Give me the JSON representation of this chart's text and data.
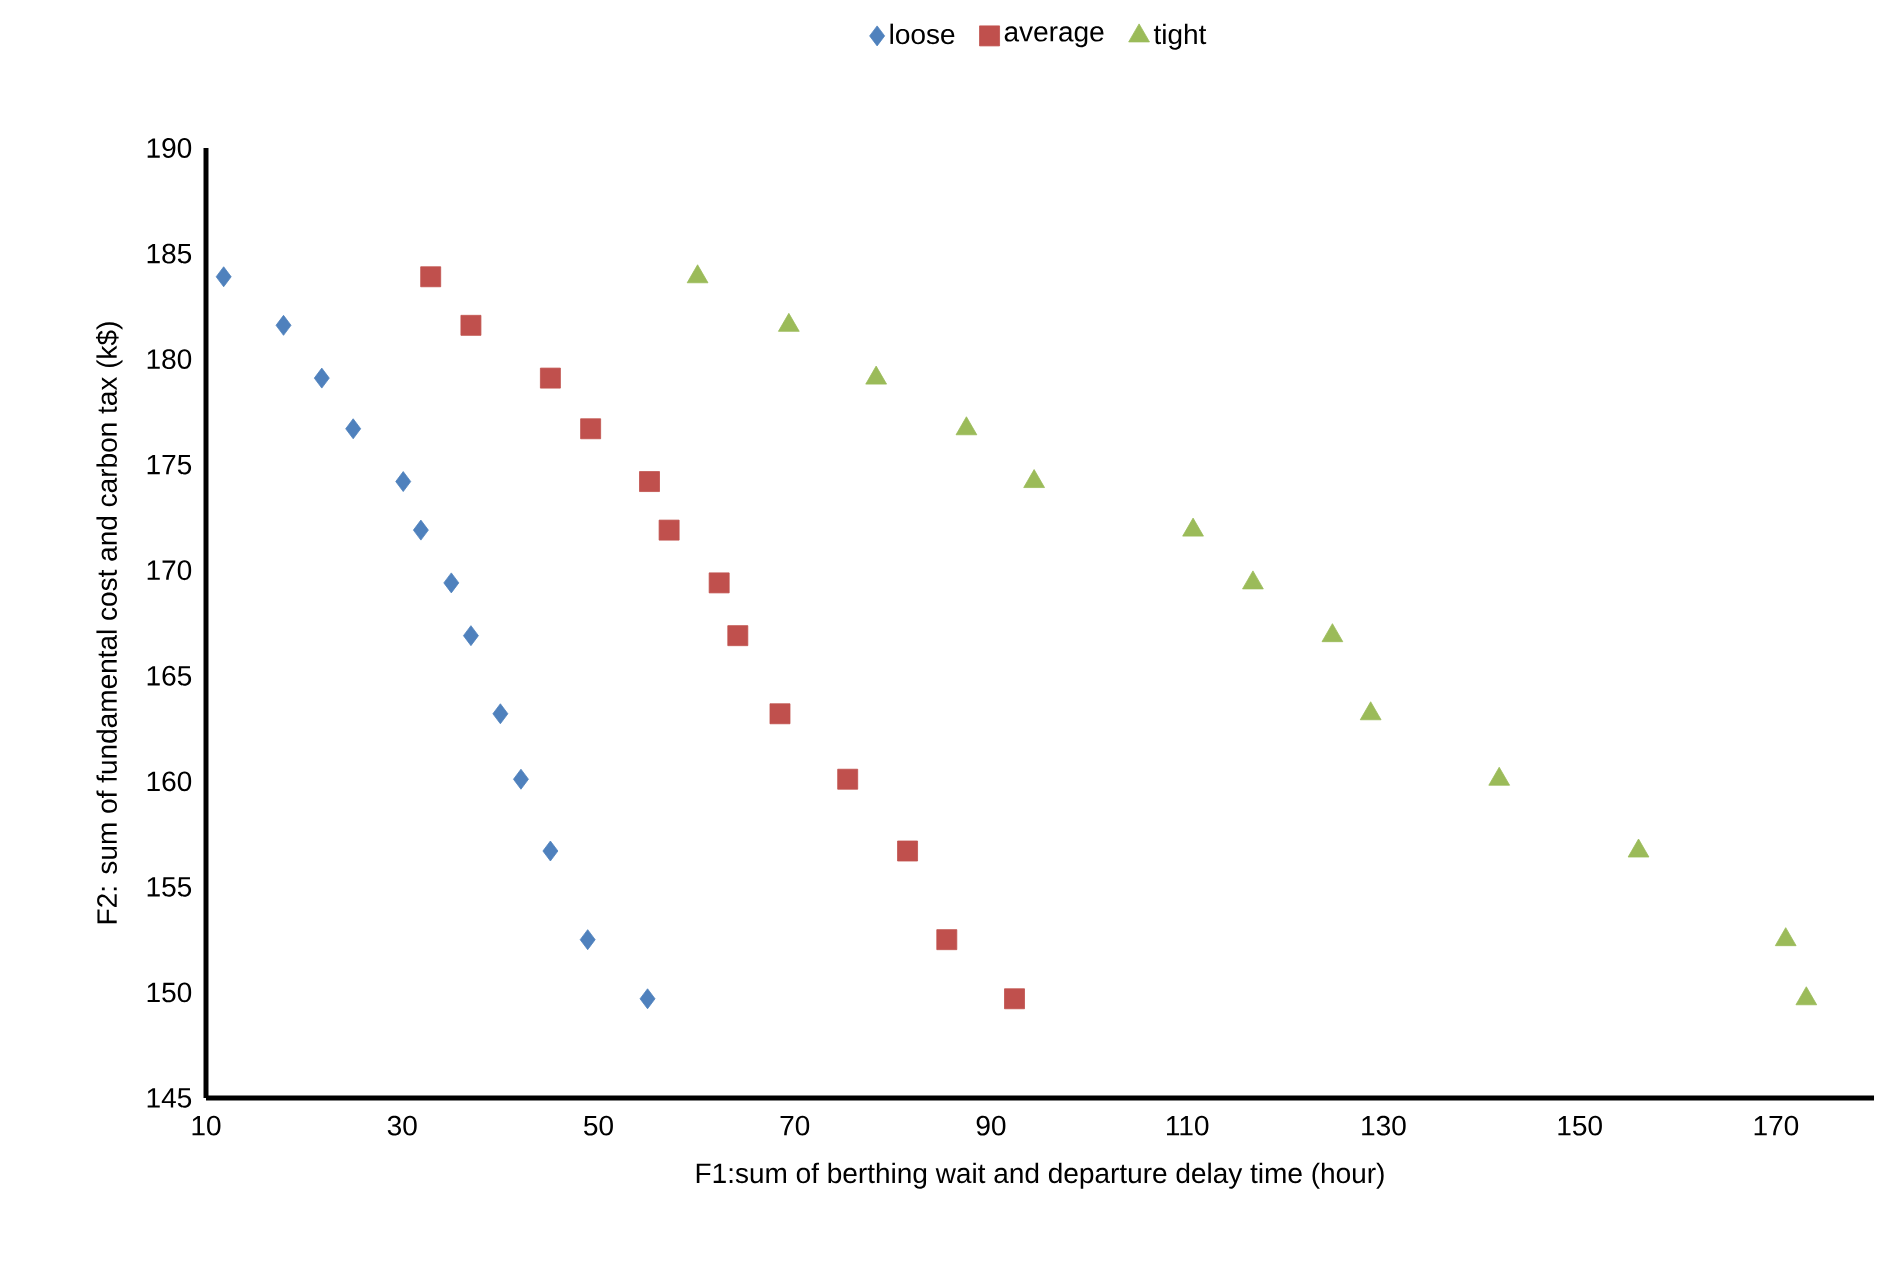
{
  "chart_data": {
    "type": "scatter",
    "xlabel": "F1:sum of berthing wait and departure delay time (hour)",
    "ylabel": "F2: sum of fundamental cost and carbon tax (k$)",
    "xlim": [
      10,
      180
    ],
    "xticks": [
      10,
      30,
      50,
      70,
      90,
      110,
      130,
      150,
      170
    ],
    "ylim": [
      145,
      190
    ],
    "yticks": [
      145,
      150,
      155,
      160,
      165,
      170,
      175,
      180,
      185,
      190
    ],
    "grid": false,
    "legend": "top",
    "series": [
      {
        "name": "loose",
        "color": "#4f81bd",
        "marker": "diamond",
        "x": [
          11.8,
          17.9,
          21.8,
          25.0,
          30.1,
          31.9,
          35.0,
          37.0,
          40.0,
          42.1,
          45.1,
          48.9,
          55.0
        ],
        "values": [
          183.9,
          181.6,
          179.1,
          176.7,
          174.2,
          171.9,
          169.4,
          166.9,
          163.2,
          160.1,
          156.7,
          152.5,
          149.7
        ]
      },
      {
        "name": "average",
        "color": "#c0504d",
        "marker": "square",
        "x": [
          32.9,
          37.0,
          45.1,
          49.2,
          55.2,
          57.2,
          62.3,
          64.2,
          68.5,
          75.4,
          81.5,
          85.5,
          92.4
        ],
        "values": [
          183.9,
          181.6,
          179.1,
          176.7,
          174.2,
          171.9,
          169.4,
          166.9,
          163.2,
          160.1,
          156.7,
          152.5,
          149.7
        ]
      },
      {
        "name": "tight",
        "color": "#9bbb59",
        "marker": "triangle",
        "x": [
          60.1,
          69.4,
          78.3,
          87.5,
          94.4,
          110.6,
          116.7,
          124.8,
          128.7,
          141.8,
          156.0,
          171.0,
          173.1
        ],
        "values": [
          183.9,
          181.6,
          179.1,
          176.7,
          174.2,
          171.9,
          169.4,
          166.9,
          163.2,
          160.1,
          156.7,
          152.5,
          149.7
        ]
      }
    ]
  }
}
